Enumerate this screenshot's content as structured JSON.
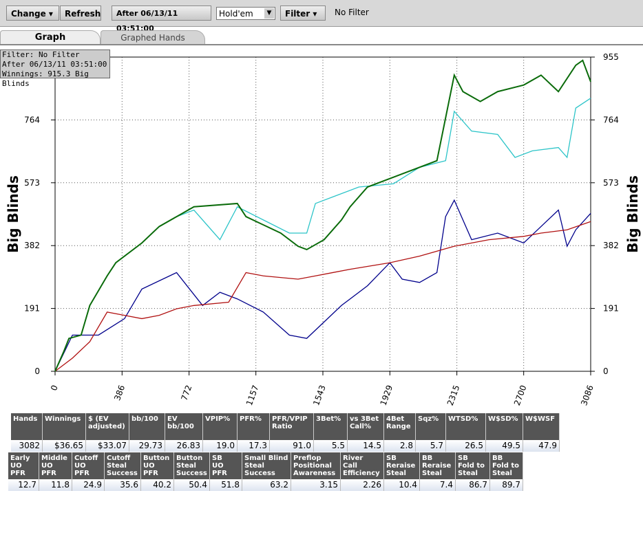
{
  "toolbar": {
    "change": "Change",
    "refresh": "Refresh",
    "after": "After 06/13/11 03:51:00",
    "game": "Hold'em",
    "filter": "Filter",
    "filter_status": "No Filter"
  },
  "tabs": [
    "Graph",
    "Graphed Hands"
  ],
  "info": [
    "Filter: No Filter",
    "After 06/13/11 03:51:00",
    "Winnings: 915.3 Big Blinds"
  ],
  "chart_data": {
    "type": "line",
    "ylabel": "Big Blinds",
    "xlim": [
      0,
      3086
    ],
    "ylim": [
      0,
      955
    ],
    "xticks": [
      0,
      386,
      772,
      1157,
      1543,
      1929,
      2315,
      2700,
      3086
    ],
    "yticks": [
      0,
      191,
      382,
      573,
      764,
      955
    ],
    "grid": true,
    "series": [
      {
        "color": "#2bc4c8",
        "x": [
          0,
          50,
          80,
          150,
          200,
          300,
          350,
          500,
          600,
          700,
          800,
          950,
          1050,
          1200,
          1350,
          1450,
          1500,
          1600,
          1750,
          1950,
          2100,
          2250,
          2300,
          2400,
          2550,
          2650,
          2750,
          2900,
          2950,
          3000,
          3086
        ],
        "values": [
          0,
          60,
          100,
          110,
          200,
          290,
          330,
          390,
          440,
          470,
          490,
          400,
          500,
          460,
          420,
          420,
          510,
          530,
          560,
          570,
          620,
          640,
          790,
          730,
          720,
          650,
          670,
          680,
          650,
          800,
          830
        ]
      },
      {
        "color": "#00008b",
        "x": [
          0,
          100,
          250,
          400,
          500,
          700,
          850,
          950,
          1050,
          1200,
          1350,
          1450,
          1550,
          1650,
          1800,
          1929,
          2000,
          2100,
          2200,
          2250,
          2300,
          2400,
          2550,
          2700,
          2800,
          2900,
          2950,
          3000,
          3086
        ],
        "values": [
          0,
          110,
          110,
          160,
          250,
          300,
          200,
          240,
          220,
          180,
          110,
          100,
          150,
          200,
          260,
          330,
          280,
          270,
          300,
          470,
          520,
          400,
          420,
          390,
          440,
          490,
          380,
          430,
          480
        ]
      },
      {
        "color": "#b01010",
        "x": [
          0,
          100,
          200,
          300,
          400,
          500,
          600,
          700,
          800,
          1000,
          1100,
          1200,
          1400,
          1500,
          1600,
          1700,
          1929,
          2100,
          2300,
          2500,
          2700,
          2800,
          2950,
          3086
        ],
        "values": [
          0,
          40,
          90,
          180,
          170,
          160,
          170,
          190,
          200,
          210,
          300,
          290,
          280,
          290,
          300,
          310,
          330,
          350,
          380,
          400,
          410,
          420,
          430,
          455
        ]
      },
      {
        "color": "#0a6b0a",
        "x": [
          0,
          50,
          80,
          150,
          200,
          300,
          350,
          500,
          600,
          700,
          800,
          1050,
          1100,
          1300,
          1400,
          1450,
          1550,
          1650,
          1700,
          1800,
          1950,
          2200,
          2300,
          2350,
          2450,
          2550,
          2700,
          2800,
          2900,
          3000,
          3040,
          3086
        ],
        "values": [
          0,
          60,
          100,
          110,
          200,
          290,
          330,
          390,
          440,
          470,
          500,
          510,
          470,
          420,
          380,
          370,
          400,
          460,
          500,
          560,
          590,
          640,
          900,
          850,
          820,
          850,
          870,
          900,
          850,
          930,
          945,
          880
        ]
      }
    ]
  },
  "table1": {
    "headers": [
      "Hands",
      "Winnings",
      "$ (EV\nadjusted)",
      "bb/100",
      "EV\nbb/100",
      "VPIP%",
      "PFR%",
      "PFR/VPIP\nRatio",
      "3Bet%",
      "vs 3Bet\nCall%",
      "4Bet\nRange",
      "Sqz%",
      "WTSD%",
      "W$SD%",
      "W$WSF"
    ],
    "values": [
      "3082",
      "$36.65",
      "$33.07",
      "29.73",
      "26.83",
      "19.0",
      "17.3",
      "91.0",
      "5.5",
      "14.5",
      "2.8",
      "5.7",
      "26.5",
      "49.5",
      "47.9"
    ]
  },
  "table2": {
    "headers": [
      "Early\nUO\nPFR",
      "Middle\nUO\nPFR",
      "Cutoff\nUO\nPFR",
      "Cutoff\nSteal\nSuccess",
      "Button\nUO\nPFR",
      "Button\nSteal\nSuccess",
      "SB\nUO\nPFR",
      "Small Blind\nSteal\nSuccess",
      "Preflop\nPositional\nAwareness",
      "River\nCall\nEfficiency",
      "SB\nReraise\nSteal",
      "BB\nReraise\nSteal",
      "SB\nFold to\nSteal",
      "BB\nFold to\nSteal"
    ],
    "values": [
      "12.7",
      "11.8",
      "24.9",
      "35.6",
      "40.2",
      "50.4",
      "51.8",
      "63.2",
      "3.15",
      "2.26",
      "10.4",
      "7.4",
      "86.7",
      "89.7"
    ]
  }
}
